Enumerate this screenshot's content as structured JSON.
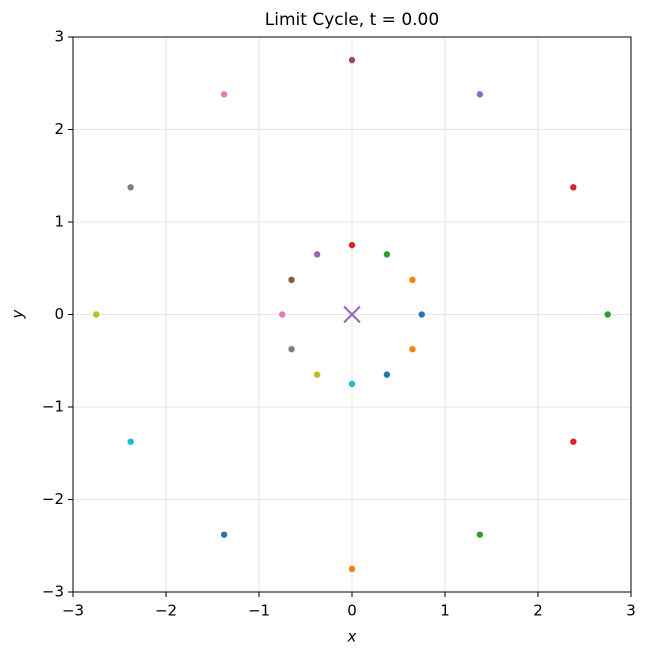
{
  "chart_data": {
    "type": "scatter",
    "title": "Limit Cycle, t = 0.00",
    "x_label": "x",
    "y_label": "y",
    "xlim": [
      -3,
      3
    ],
    "ylim": [
      -3,
      3
    ],
    "xticks": [
      {
        "value": -3,
        "label": "−3"
      },
      {
        "value": -2,
        "label": "−2"
      },
      {
        "value": -1,
        "label": "−1"
      },
      0,
      1,
      2,
      3
    ],
    "yticks": [
      {
        "value": -3,
        "label": "−3"
      },
      {
        "value": -2,
        "label": "−2"
      },
      {
        "value": -1,
        "label": "−1"
      },
      0,
      1,
      2,
      3
    ],
    "grid": true,
    "series": [
      {
        "marker": "dot",
        "x": [
          0.75,
          0.65,
          0.375,
          0,
          -0.375,
          -0.65,
          -0.75,
          -0.65,
          -0.375,
          0,
          0.375,
          0.65,
          2.75,
          2.38,
          1.375,
          0,
          -1.375,
          -2.38,
          -2.75,
          -2.38,
          -1.375,
          0,
          1.375,
          2.38
        ],
        "values": [
          0,
          0.375,
          0.65,
          0.75,
          0.65,
          0.375,
          0,
          -0.375,
          -0.65,
          -0.75,
          -0.65,
          -0.375,
          0,
          1.375,
          2.38,
          2.75,
          2.38,
          1.375,
          0,
          -1.375,
          -2.38,
          -2.75,
          -2.38,
          -1.375
        ],
        "colors": [
          "#1f77b4",
          "#ff7f0e",
          "#2ca02c",
          "#d62728",
          "#9467bd",
          "#8c564b",
          "#e377c2",
          "#7f7f7f",
          "#bcbd22",
          "#17becf",
          "#1f77b4",
          "#ff7f0e",
          "#2ca02c",
          "#d62728",
          "#9467bd",
          "#8c564b",
          "#e377c2",
          "#7f7f7f",
          "#bcbd22",
          "#17becf",
          "#1f77b4",
          "#ff7f0e",
          "#2ca02c",
          "#d62728"
        ]
      },
      {
        "marker": "x",
        "x": [
          0
        ],
        "values": [
          0
        ],
        "colors": [
          "#9467bd"
        ]
      }
    ]
  }
}
